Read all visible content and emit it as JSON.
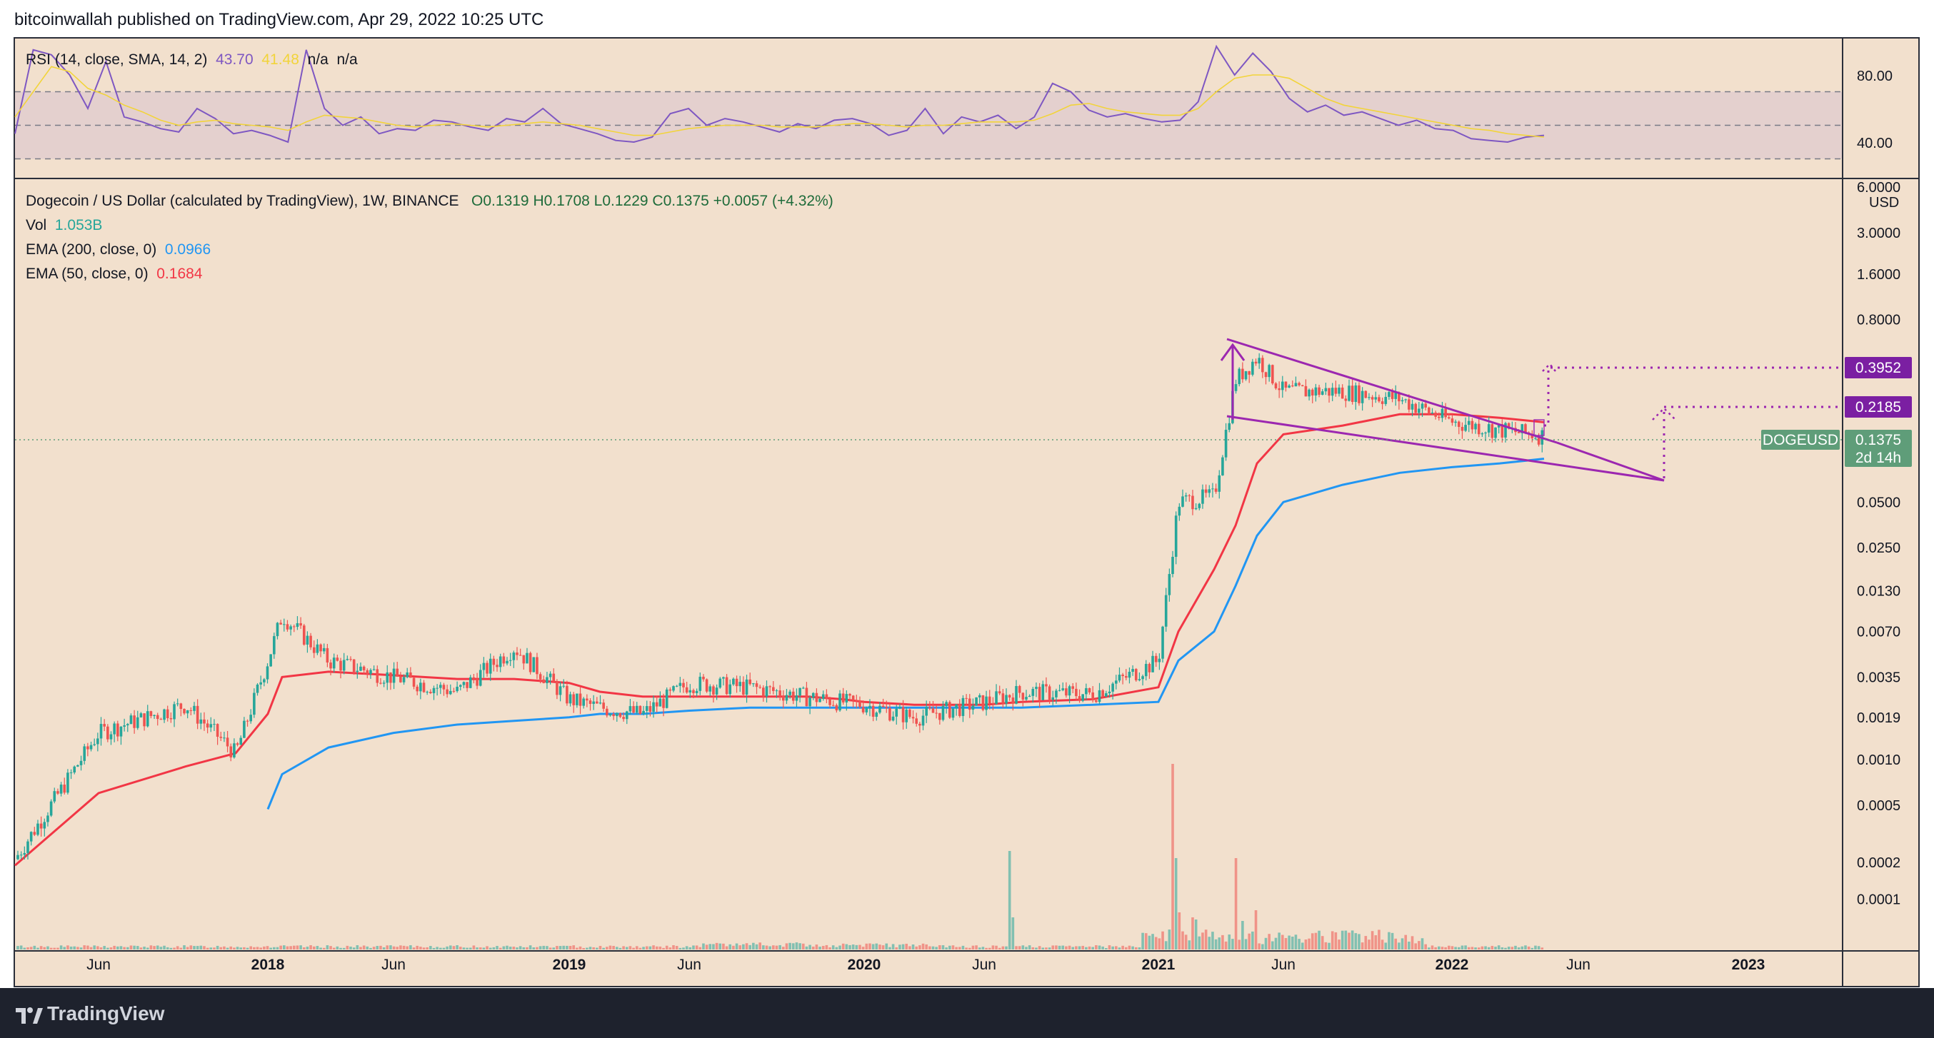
{
  "header": {
    "publisher_line": "bitcoinwallah published on TradingView.com, Apr 29, 2022 10:25 UTC"
  },
  "footer": {
    "brand": "TradingView"
  },
  "colors": {
    "background": "#f2e0cd",
    "up_candle": "#26a69a",
    "down_candle": "#ef5350",
    "ema200": "#2196f3",
    "ema50": "#f23645",
    "rsi": "#7e57c2",
    "rsi_sma": "#f2d43a",
    "pattern": "#9c27b0",
    "tag_bg": "#7b1fa2",
    "price_tag": "#5f9d79"
  },
  "rsi_legend": {
    "name": "RSI (14, close, SMA, 14, 2)",
    "v1": "43.70",
    "v2": "41.48",
    "v3": "n/a",
    "v4": "n/a"
  },
  "main_legend": {
    "title": "Dogecoin / US Dollar (calculated by TradingView), 1W, BINANCE",
    "ohlc": "O0.1319  H0.1708  L0.1229  C0.1375  +0.0057 (+4.32%)",
    "vol_label": "Vol",
    "vol_value": "1.053B",
    "ema200_label": "EMA (200, close, 0)",
    "ema200_value": "0.0966",
    "ema50_label": "EMA (50, close, 0)",
    "ema50_value": "0.1684"
  },
  "chart_data": [
    {
      "type": "line",
      "title": "RSI (14, close, SMA, 14, 2)",
      "ylim": [
        20,
        100
      ],
      "yticks": [
        "80.00",
        "40.00"
      ],
      "bands": [
        70,
        50,
        30
      ],
      "series": [
        {
          "name": "RSI",
          "color": "#7e57c2",
          "values": [
            45,
            95,
            92,
            80,
            60,
            88,
            55,
            52,
            48,
            46,
            60,
            54,
            45,
            47,
            44,
            40,
            95,
            60,
            50,
            55,
            45,
            48,
            47,
            53,
            52,
            49,
            47,
            54,
            52,
            60,
            51,
            48,
            45,
            41,
            40,
            43,
            57,
            60,
            50,
            54,
            52,
            49,
            46,
            51,
            48,
            53,
            54,
            51,
            44,
            47,
            60,
            45,
            55,
            52,
            56,
            48,
            55,
            75,
            70,
            59,
            55,
            57,
            54,
            52,
            53,
            64,
            97,
            80,
            93,
            82,
            66,
            58,
            62,
            56,
            58,
            54,
            50,
            53,
            48,
            47,
            42,
            41,
            40,
            43,
            44
          ]
        },
        {
          "name": "SMA",
          "color": "#f2d43a",
          "values": [
            55,
            70,
            85,
            82,
            72,
            68,
            62,
            58,
            53,
            50,
            52,
            53,
            51,
            50,
            49,
            47,
            52,
            56,
            55,
            54,
            52,
            50,
            49,
            50,
            51,
            50,
            49,
            50,
            51,
            52,
            51,
            50,
            48,
            46,
            44,
            44,
            46,
            48,
            49,
            50,
            50,
            50,
            49,
            49,
            49,
            50,
            51,
            51,
            50,
            49,
            50,
            50,
            51,
            52,
            52,
            52,
            53,
            57,
            62,
            63,
            60,
            58,
            57,
            56,
            56,
            60,
            70,
            78,
            80,
            80,
            78,
            72,
            66,
            62,
            60,
            58,
            56,
            54,
            52,
            50,
            48,
            47,
            45,
            44,
            43
          ]
        }
      ]
    },
    {
      "type": "candlestick",
      "title": "Dogecoin / US Dollar (calculated by TradingView), 1W, BINANCE",
      "yscale": "log",
      "ylabel": "USD",
      "yticks": [
        "6.0000",
        "3.0000",
        "1.6000",
        "0.8000",
        "0.0500",
        "0.0250",
        "0.0130",
        "0.0070",
        "0.0035",
        "0.0019",
        "0.0010",
        "0.0005",
        "0.0002",
        "0.0001"
      ],
      "xticks": [
        "Jun",
        "2018",
        "Jun",
        "2019",
        "Jun",
        "2020",
        "Jun",
        "2021",
        "Jun",
        "2022",
        "Jun",
        "2023"
      ],
      "x": [
        "2017-04",
        "2017-06",
        "2017-08",
        "2017-10",
        "2017-12",
        "2018-01",
        "2018-03",
        "2018-05",
        "2018-07",
        "2018-09",
        "2018-11",
        "2019-01",
        "2019-03",
        "2019-05",
        "2019-07",
        "2019-09",
        "2019-11",
        "2020-01",
        "2020-03",
        "2020-05",
        "2020-07",
        "2020-09",
        "2020-11",
        "2021-01",
        "2021-02",
        "2021-03",
        "2021-04",
        "2021-05",
        "2021-06",
        "2021-08",
        "2021-10",
        "2021-12",
        "2022-02",
        "2022-04"
      ],
      "close": [
        0.00022,
        0.0015,
        0.0023,
        0.0011,
        0.0045,
        0.009,
        0.0045,
        0.0035,
        0.0028,
        0.0055,
        0.0025,
        0.0022,
        0.002,
        0.0032,
        0.003,
        0.0026,
        0.0024,
        0.0023,
        0.0019,
        0.0022,
        0.0024,
        0.0028,
        0.0027,
        0.0045,
        0.05,
        0.055,
        0.32,
        0.45,
        0.27,
        0.27,
        0.24,
        0.17,
        0.15,
        0.1375
      ],
      "series": [
        {
          "name": "EMA (200, close, 0)",
          "color": "#2196f3",
          "values": [
            null,
            null,
            null,
            null,
            0.00047,
            0.0008,
            0.0012,
            0.0015,
            0.0017,
            0.0018,
            0.0019,
            0.002,
            0.002,
            0.0021,
            0.0022,
            0.0022,
            0.0022,
            0.0022,
            0.0022,
            0.0022,
            0.0022,
            0.0022,
            0.0023,
            0.0024,
            0.0045,
            0.007,
            0.014,
            0.03,
            0.05,
            0.065,
            0.078,
            0.085,
            0.09,
            0.0966
          ]
        },
        {
          "name": "EMA (50, close, 0)",
          "color": "#f23645",
          "values": [
            0.0002,
            0.0006,
            0.0009,
            0.0011,
            0.002,
            0.0035,
            0.0038,
            0.0036,
            0.0034,
            0.0034,
            0.0032,
            0.0028,
            0.0026,
            0.0026,
            0.0026,
            0.0026,
            0.0025,
            0.0024,
            0.0023,
            0.0023,
            0.0023,
            0.0024,
            0.0025,
            0.003,
            0.007,
            0.018,
            0.035,
            0.09,
            0.14,
            0.16,
            0.19,
            0.19,
            0.18,
            0.1684
          ]
        }
      ],
      "annotations": [
        {
          "label": "0.3952",
          "type": "target"
        },
        {
          "label": "0.2185",
          "type": "target"
        },
        {
          "label": "DOGEUSD",
          "type": "symbol"
        },
        {
          "label": "0.1375",
          "type": "last_price"
        },
        {
          "label": "2d 14h",
          "type": "countdown"
        }
      ]
    }
  ]
}
